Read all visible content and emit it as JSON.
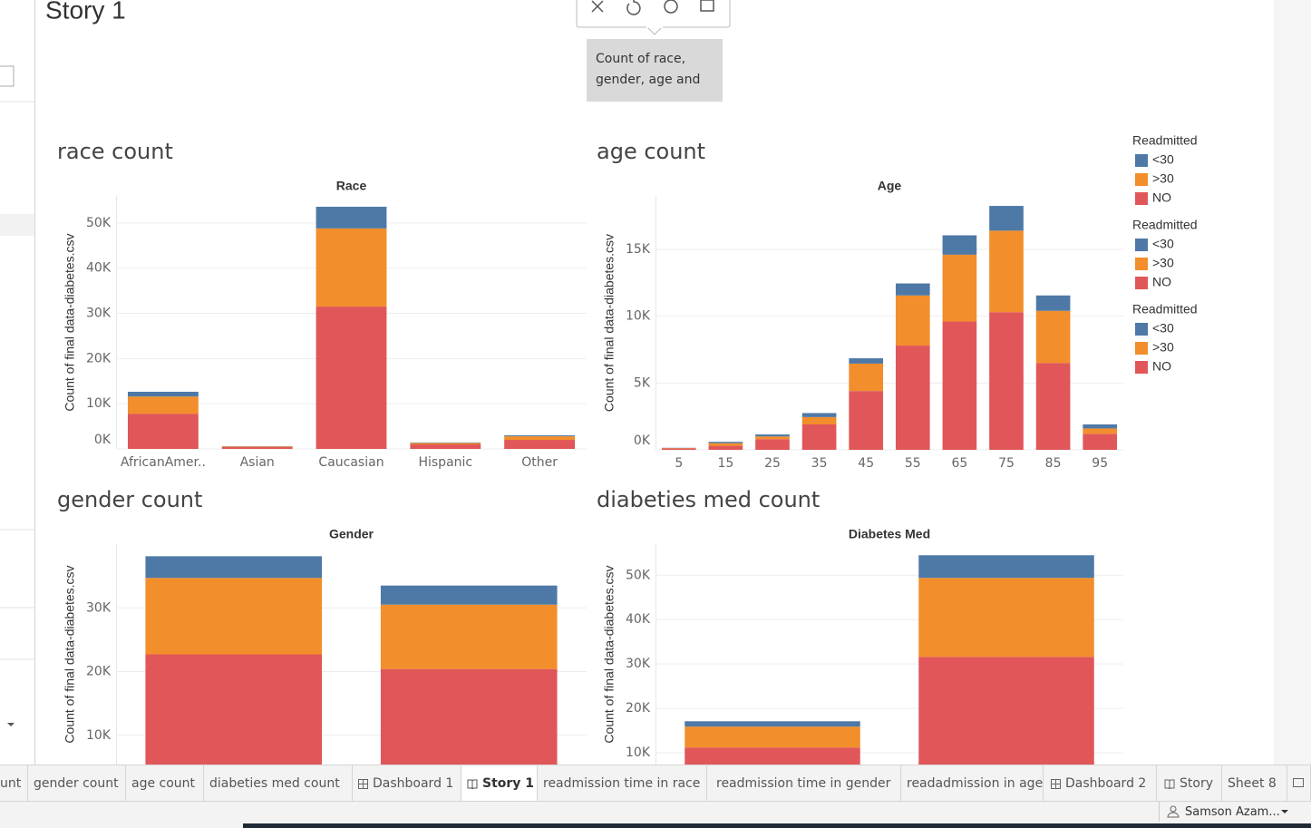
{
  "story_title": "Story 1",
  "caption": [
    "Count of race,",
    "gender, age  and"
  ],
  "chart_data": [
    {
      "type": "bar",
      "stacked": true,
      "title": "race count",
      "x_label": "Race",
      "y_label": "Count of final data-diabetes.csv",
      "categories": [
        "AfricanAmer..",
        "Asian",
        "Caucasian",
        "Hispanic",
        "Other"
      ],
      "legend_title": "Readmitted",
      "series": [
        {
          "name": "NO",
          "color": "#e15759",
          "values": [
            7800,
            400,
            31500,
            1000,
            2000
          ]
        },
        {
          "name": ">30",
          "color": "#f28e2b",
          "values": [
            3800,
            150,
            17300,
            300,
            800
          ]
        },
        {
          "name": "<30",
          "color": "#4e79a7",
          "values": [
            1050,
            50,
            4800,
            100,
            200
          ]
        }
      ],
      "ylim": [
        0,
        56000
      ],
      "yticks": [
        {
          "value": 0,
          "label": "0K"
        },
        {
          "value": 10000,
          "label": "10K"
        },
        {
          "value": 20000,
          "label": "20K"
        },
        {
          "value": 30000,
          "label": "30K"
        },
        {
          "value": 40000,
          "label": "40K"
        },
        {
          "value": 50000,
          "label": "50K"
        }
      ],
      "grid": true
    },
    {
      "type": "bar",
      "stacked": true,
      "title": "age count",
      "x_label": "Age",
      "y_label": "Count of final data-diabetes.csv",
      "categories": [
        "5",
        "15",
        "25",
        "35",
        "45",
        "55",
        "65",
        "75",
        "85",
        "95"
      ],
      "legend_title": "Readmitted",
      "series": [
        {
          "name": "NO",
          "color": "#e15759",
          "values": [
            100,
            300,
            800,
            1900,
            4400,
            7800,
            9600,
            10300,
            6500,
            1200
          ]
        },
        {
          "name": ">30",
          "color": "#f28e2b",
          "values": [
            30,
            200,
            200,
            550,
            2050,
            3750,
            5000,
            6100,
            3900,
            400
          ]
        },
        {
          "name": "<30",
          "color": "#4e79a7",
          "values": [
            20,
            100,
            150,
            300,
            400,
            900,
            1450,
            1850,
            1150,
            300
          ]
        }
      ],
      "ylim": [
        0,
        19000
      ],
      "yticks": [
        {
          "value": 0,
          "label": "0K"
        },
        {
          "value": 5000,
          "label": "5K"
        },
        {
          "value": 10000,
          "label": "10K"
        },
        {
          "value": 15000,
          "label": "15K"
        }
      ],
      "grid": true
    },
    {
      "type": "bar",
      "stacked": true,
      "title": "gender count",
      "x_label": "Gender",
      "y_label": "Count of final data-diabetes.csv",
      "categories": [
        null,
        null
      ],
      "legend_title": "Readmitted",
      "series": [
        {
          "name": "NO",
          "color": "#e15759",
          "values": [
            22700,
            20400
          ]
        },
        {
          "name": ">30",
          "color": "#f28e2b",
          "values": [
            12000,
            10100
          ]
        },
        {
          "name": "<30",
          "color": "#4e79a7",
          "values": [
            3400,
            3000
          ]
        }
      ],
      "ylim": [
        0,
        40000
      ],
      "yticks": [
        {
          "value": 10000,
          "label": "10K"
        },
        {
          "value": 20000,
          "label": "20K"
        },
        {
          "value": 30000,
          "label": "30K"
        }
      ],
      "grid": true
    },
    {
      "type": "bar",
      "stacked": true,
      "title": "diabeties med count",
      "x_label": "Diabetes Med",
      "y_label": "Count of final data-diabetes.csv",
      "categories": [
        null,
        null
      ],
      "series": [
        {
          "color": "#e15759",
          "values": [
            11200,
            31600
          ]
        },
        {
          "color": "#f28e2b",
          "values": [
            4700,
            17800
          ]
        },
        {
          "color": "#4e79a7",
          "values": [
            1200,
            5100
          ]
        }
      ],
      "ylim": [
        0,
        57000
      ],
      "yticks": [
        {
          "value": 10000,
          "label": "10K"
        },
        {
          "value": 20000,
          "label": "20K"
        },
        {
          "value": 30000,
          "label": "30K"
        },
        {
          "value": 40000,
          "label": "40K"
        },
        {
          "value": 50000,
          "label": "50K"
        }
      ],
      "grid": true
    }
  ],
  "tabs": [
    "unt",
    "gender count",
    "age count",
    "diabeties med count",
    "Dashboard 1",
    "Story 1",
    "readmission time in race",
    "readmission time in gender",
    "readadmission in age",
    "Dashboard 2",
    "Story",
    "Sheet 8"
  ],
  "user": "Samson  Azam..."
}
